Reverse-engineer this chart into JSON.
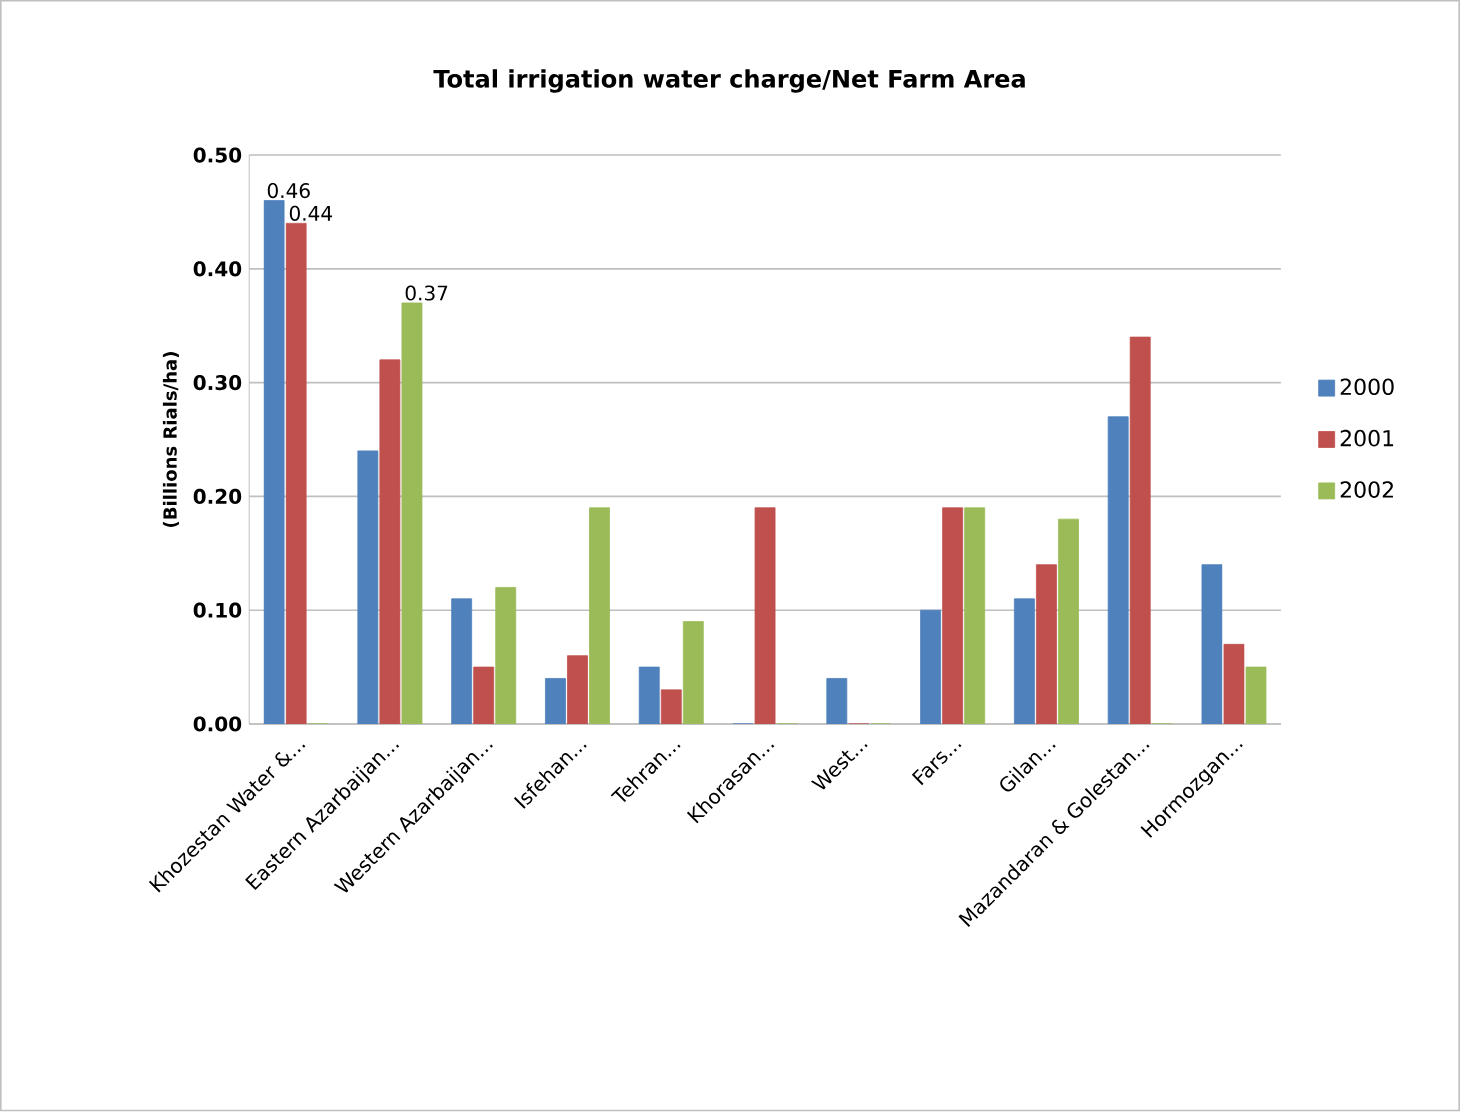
{
  "chart_data": {
    "type": "bar",
    "title": "Total irrigation water charge/Net Farm Area",
    "ylabel": "(Billions Rials/ha)",
    "categories": [
      "Khozestan Water &...",
      "Eastern Azarbaijan...",
      "Western Azarbaijan...",
      "Isfehan...",
      "Tehran...",
      "Khorasan...",
      "West...",
      "Fars...",
      "Gilan...",
      "Mazandaran & Golestan...",
      "Hormozgan..."
    ],
    "series": [
      {
        "name": "2000",
        "color": "#4f81bd",
        "values": [
          0.46,
          0.24,
          0.11,
          0.04,
          0.05,
          0,
          0.04,
          0.1,
          0.11,
          0.27,
          0.14
        ],
        "value_labels": [
          "0.46",
          null,
          null,
          null,
          null,
          null,
          null,
          null,
          null,
          null,
          null
        ]
      },
      {
        "name": "2001",
        "color": "#c0504d",
        "values": [
          0.44,
          0.32,
          0.05,
          0.06,
          0.03,
          0.19,
          0,
          0.19,
          0.14,
          0.34,
          0.07
        ],
        "value_labels": [
          "0.44",
          null,
          null,
          null,
          null,
          null,
          null,
          null,
          null,
          null,
          null
        ]
      },
      {
        "name": "2002",
        "color": "#9bbb59",
        "values": [
          0,
          0.37,
          0.12,
          0.19,
          0.09,
          0,
          0,
          0.19,
          0.18,
          0,
          0.05
        ],
        "value_labels": [
          null,
          "0.37",
          null,
          null,
          null,
          null,
          null,
          null,
          null,
          null,
          null
        ]
      }
    ],
    "ylim": [
      0,
      0.5
    ],
    "yticks": [
      {
        "value": 0,
        "label": "0.00"
      },
      {
        "value": 0.1,
        "label": "0.10"
      },
      {
        "value": 0.2,
        "label": "0.20"
      },
      {
        "value": 0.3,
        "label": "0.30"
      },
      {
        "value": 0.4,
        "label": "0.40"
      },
      {
        "value": 0.5,
        "label": "0.50"
      }
    ],
    "grid": "y",
    "legend": "right"
  }
}
